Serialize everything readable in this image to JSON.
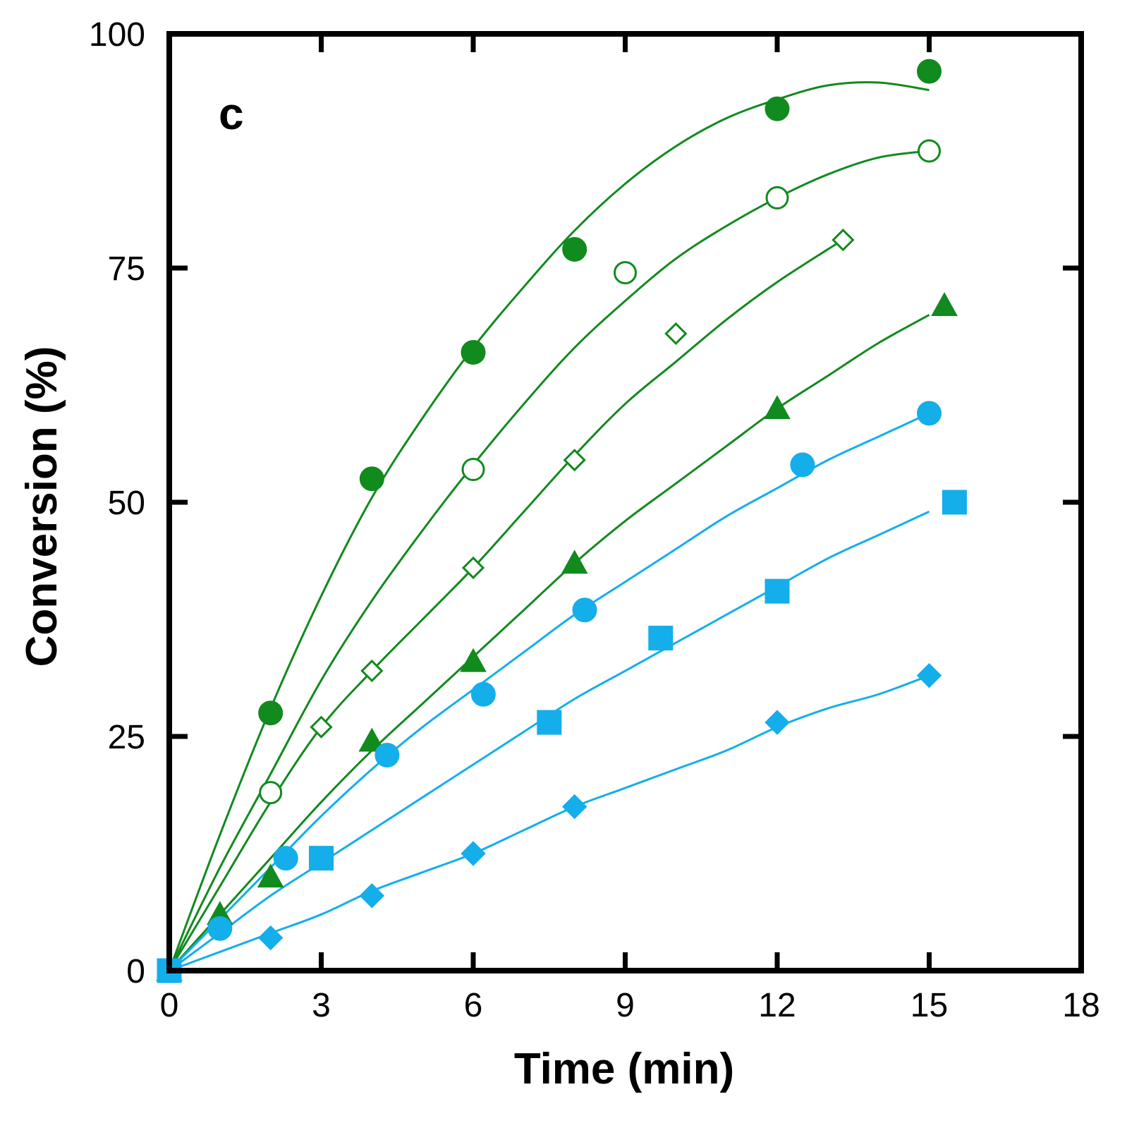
{
  "chart_data": {
    "type": "scatter",
    "title": "",
    "panel_label": "c",
    "xlabel": "Time (min)",
    "ylabel": "Conversion (%)",
    "xlim": [
      0,
      18
    ],
    "ylim": [
      0,
      100
    ],
    "xticks": [
      "0",
      "3",
      "6",
      "9",
      "12",
      "15",
      "18"
    ],
    "yticks": [
      "0",
      "25",
      "50",
      "75",
      "100"
    ],
    "grid": false,
    "legend": "none",
    "colors": {
      "green": "#118a1e",
      "blue": "#14aeea"
    },
    "series": [
      {
        "name": "green-filled-circle",
        "color": "green",
        "marker": "circle",
        "filled": true,
        "points": [
          [
            0,
            0
          ],
          [
            2,
            27.5
          ],
          [
            4,
            52.5
          ],
          [
            6,
            66
          ],
          [
            8,
            77
          ],
          [
            12,
            92
          ],
          [
            15,
            96
          ]
        ],
        "curve": [
          [
            0,
            0
          ],
          [
            1,
            14.5
          ],
          [
            2,
            28
          ],
          [
            3,
            40
          ],
          [
            4,
            50.5
          ],
          [
            5,
            59
          ],
          [
            6,
            66.5
          ],
          [
            7,
            73
          ],
          [
            8,
            79
          ],
          [
            9,
            84
          ],
          [
            10,
            88
          ],
          [
            11,
            91
          ],
          [
            12,
            93
          ],
          [
            13,
            94.5
          ],
          [
            14,
            94.8
          ],
          [
            15,
            94
          ]
        ]
      },
      {
        "name": "green-open-circle",
        "color": "green",
        "marker": "circle",
        "filled": false,
        "points": [
          [
            0,
            0
          ],
          [
            2,
            19
          ],
          [
            6,
            53.5
          ],
          [
            9,
            74.5
          ],
          [
            12,
            82.5
          ],
          [
            15,
            87.5
          ]
        ],
        "curve": [
          [
            0,
            0
          ],
          [
            1,
            11
          ],
          [
            2,
            21
          ],
          [
            3,
            31
          ],
          [
            4,
            39.5
          ],
          [
            5,
            47
          ],
          [
            6,
            54
          ],
          [
            7,
            60.5
          ],
          [
            8,
            66.5
          ],
          [
            9,
            71.5
          ],
          [
            10,
            76
          ],
          [
            11,
            79.5
          ],
          [
            12,
            82.5
          ],
          [
            13,
            85
          ],
          [
            14,
            86.8
          ],
          [
            15,
            87.5
          ]
        ]
      },
      {
        "name": "green-open-diamond",
        "color": "green",
        "marker": "diamond",
        "filled": false,
        "points": [
          [
            0,
            0
          ],
          [
            3,
            26
          ],
          [
            4,
            32
          ],
          [
            6,
            43
          ],
          [
            8,
            54.5
          ],
          [
            10,
            68
          ],
          [
            13.3,
            78
          ]
        ],
        "curve": [
          [
            0,
            0
          ],
          [
            1,
            9
          ],
          [
            2,
            18
          ],
          [
            3,
            26
          ],
          [
            4,
            32
          ],
          [
            5,
            37.5
          ],
          [
            6,
            43
          ],
          [
            7,
            49
          ],
          [
            8,
            55
          ],
          [
            9,
            60.5
          ],
          [
            10,
            65
          ],
          [
            11,
            69.5
          ],
          [
            12,
            73.5
          ],
          [
            13,
            77
          ],
          [
            13.3,
            78
          ]
        ]
      },
      {
        "name": "green-filled-triangle",
        "color": "green",
        "marker": "triangle",
        "filled": true,
        "points": [
          [
            0,
            0
          ],
          [
            1,
            6
          ],
          [
            2,
            10
          ],
          [
            4,
            24.5
          ],
          [
            6,
            33
          ],
          [
            8,
            43.5
          ],
          [
            12,
            60
          ],
          [
            15.3,
            71
          ]
        ],
        "curve": [
          [
            0,
            0
          ],
          [
            1,
            6
          ],
          [
            2,
            12
          ],
          [
            3,
            18
          ],
          [
            4,
            23.5
          ],
          [
            5,
            28.5
          ],
          [
            6,
            33.5
          ],
          [
            7,
            38.5
          ],
          [
            8,
            43.5
          ],
          [
            9,
            48
          ],
          [
            10,
            52
          ],
          [
            11,
            56
          ],
          [
            12,
            60
          ],
          [
            13,
            63.5
          ],
          [
            14,
            67
          ],
          [
            15,
            70
          ]
        ]
      },
      {
        "name": "blue-filled-circle",
        "color": "blue",
        "marker": "circle",
        "filled": true,
        "points": [
          [
            0,
            0
          ],
          [
            1,
            4.5
          ],
          [
            2.3,
            12
          ],
          [
            4.3,
            23
          ],
          [
            6.2,
            29.5
          ],
          [
            8.2,
            38.5
          ],
          [
            12.5,
            54
          ],
          [
            15,
            59.5
          ]
        ],
        "curve": [
          [
            0,
            0
          ],
          [
            1,
            5.5
          ],
          [
            2,
            11
          ],
          [
            3,
            16.5
          ],
          [
            4,
            21.5
          ],
          [
            5,
            26
          ],
          [
            6,
            30
          ],
          [
            7,
            34
          ],
          [
            8,
            38
          ],
          [
            9,
            41.5
          ],
          [
            10,
            45
          ],
          [
            11,
            48.5
          ],
          [
            12,
            51.5
          ],
          [
            13,
            54.5
          ],
          [
            14,
            57
          ],
          [
            15,
            59.5
          ]
        ]
      },
      {
        "name": "blue-filled-square",
        "color": "blue",
        "marker": "square",
        "filled": true,
        "points": [
          [
            0,
            0
          ],
          [
            3,
            12
          ],
          [
            7.5,
            26.5
          ],
          [
            9.7,
            35.5
          ],
          [
            12,
            40.5
          ],
          [
            15.5,
            50
          ]
        ],
        "curve": [
          [
            0,
            0
          ],
          [
            1,
            4
          ],
          [
            2,
            8
          ],
          [
            3,
            11.5
          ],
          [
            4,
            15
          ],
          [
            5,
            18.5
          ],
          [
            6,
            22
          ],
          [
            7,
            25.5
          ],
          [
            8,
            29
          ],
          [
            9,
            32
          ],
          [
            10,
            35
          ],
          [
            11,
            38
          ],
          [
            12,
            41
          ],
          [
            13,
            44
          ],
          [
            14,
            46.5
          ],
          [
            15,
            49
          ]
        ]
      },
      {
        "name": "blue-filled-diamond",
        "color": "blue",
        "marker": "diamond",
        "filled": true,
        "points": [
          [
            0,
            0
          ],
          [
            2,
            3.5
          ],
          [
            4,
            8
          ],
          [
            6,
            12.5
          ],
          [
            8,
            17.5
          ],
          [
            12,
            26.5
          ],
          [
            15,
            31.5
          ]
        ],
        "curve": [
          [
            0,
            0
          ],
          [
            1,
            2
          ],
          [
            2,
            4
          ],
          [
            3,
            6
          ],
          [
            4,
            8.5
          ],
          [
            5,
            10.5
          ],
          [
            6,
            12.5
          ],
          [
            7,
            15
          ],
          [
            8,
            17.5
          ],
          [
            9,
            19.5
          ],
          [
            10,
            21.5
          ],
          [
            11,
            23.5
          ],
          [
            12,
            26
          ],
          [
            13,
            28
          ],
          [
            14,
            29.5
          ],
          [
            15,
            31.5
          ]
        ]
      }
    ]
  }
}
